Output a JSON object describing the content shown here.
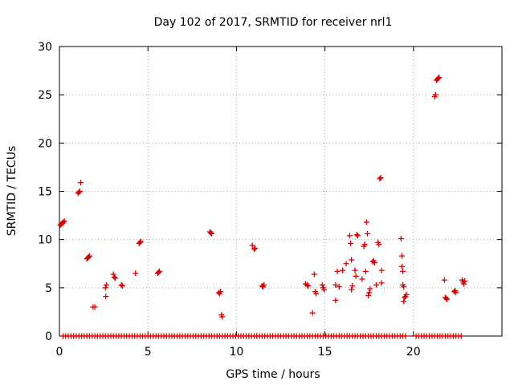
{
  "chart_data": {
    "type": "scatter",
    "title": "Day 102 of 2017, SRMTID for receiver nrl1",
    "xlabel": "GPS time / hours",
    "ylabel": "SRMTID / TECUs",
    "xlim": [
      0,
      25
    ],
    "ylim": [
      0,
      30
    ],
    "xticks": [
      0,
      5,
      10,
      15,
      20
    ],
    "yticks": [
      0,
      5,
      10,
      15,
      20,
      25,
      30
    ],
    "grid": true,
    "marker": "+",
    "color": "#e00000",
    "series": [
      {
        "name": "SRMTID",
        "points": [
          [
            0.05,
            11.5
          ],
          [
            0.1,
            11.6
          ],
          [
            0.15,
            11.7
          ],
          [
            0.22,
            11.8
          ],
          [
            0.28,
            11.9
          ],
          [
            1.05,
            14.8
          ],
          [
            1.1,
            14.9
          ],
          [
            1.15,
            15.0
          ],
          [
            1.2,
            15.9
          ],
          [
            1.55,
            8.0
          ],
          [
            1.6,
            8.1
          ],
          [
            1.65,
            8.2
          ],
          [
            1.7,
            8.3
          ],
          [
            1.9,
            3.0
          ],
          [
            2.0,
            3.0
          ],
          [
            2.6,
            5.0
          ],
          [
            2.65,
            5.3
          ],
          [
            2.62,
            4.1
          ],
          [
            3.05,
            6.4
          ],
          [
            3.1,
            6.1
          ],
          [
            3.15,
            6.0
          ],
          [
            3.5,
            5.3
          ],
          [
            3.55,
            5.2
          ],
          [
            4.3,
            6.5
          ],
          [
            4.5,
            9.6
          ],
          [
            4.55,
            9.7
          ],
          [
            4.6,
            9.8
          ],
          [
            5.55,
            6.5
          ],
          [
            5.6,
            6.6
          ],
          [
            5.65,
            6.7
          ],
          [
            8.5,
            10.8
          ],
          [
            8.55,
            10.7
          ],
          [
            8.6,
            10.6
          ],
          [
            9.0,
            4.5
          ],
          [
            9.05,
            4.4
          ],
          [
            9.1,
            4.6
          ],
          [
            9.15,
            2.2
          ],
          [
            9.2,
            2.0
          ],
          [
            10.9,
            9.4
          ],
          [
            11.0,
            9.0
          ],
          [
            11.05,
            9.1
          ],
          [
            11.45,
            5.2
          ],
          [
            11.5,
            5.1
          ],
          [
            11.55,
            5.3
          ],
          [
            13.9,
            5.4
          ],
          [
            14.0,
            5.3
          ],
          [
            14.05,
            5.2
          ],
          [
            14.3,
            2.4
          ],
          [
            14.4,
            6.4
          ],
          [
            14.45,
            4.6
          ],
          [
            14.5,
            4.4
          ],
          [
            14.85,
            5.3
          ],
          [
            14.9,
            5.0
          ],
          [
            14.95,
            4.8
          ],
          [
            15.6,
            3.7
          ],
          [
            15.6,
            5.3
          ],
          [
            15.7,
            6.7
          ],
          [
            15.8,
            5.1
          ],
          [
            16.0,
            6.8
          ],
          [
            16.2,
            7.5
          ],
          [
            16.4,
            10.4
          ],
          [
            16.45,
            9.6
          ],
          [
            16.5,
            7.9
          ],
          [
            16.5,
            4.8
          ],
          [
            16.55,
            5.2
          ],
          [
            16.7,
            6.8
          ],
          [
            16.75,
            6.2
          ],
          [
            16.8,
            10.5
          ],
          [
            16.85,
            10.4
          ],
          [
            17.1,
            5.9
          ],
          [
            17.2,
            9.3
          ],
          [
            17.25,
            9.5
          ],
          [
            17.3,
            6.7
          ],
          [
            17.35,
            11.8
          ],
          [
            17.4,
            10.6
          ],
          [
            17.45,
            4.2
          ],
          [
            17.5,
            4.5
          ],
          [
            17.55,
            4.9
          ],
          [
            17.7,
            7.7
          ],
          [
            17.75,
            7.8
          ],
          [
            17.8,
            7.6
          ],
          [
            17.9,
            5.3
          ],
          [
            18.0,
            9.7
          ],
          [
            18.05,
            9.5
          ],
          [
            18.1,
            16.3
          ],
          [
            18.15,
            16.4
          ],
          [
            18.2,
            6.8
          ],
          [
            18.2,
            5.5
          ],
          [
            19.3,
            10.1
          ],
          [
            19.35,
            8.3
          ],
          [
            19.35,
            7.2
          ],
          [
            19.4,
            6.7
          ],
          [
            19.4,
            5.3
          ],
          [
            19.45,
            5.1
          ],
          [
            19.45,
            3.6
          ],
          [
            19.5,
            4.0
          ],
          [
            19.55,
            4.1
          ],
          [
            19.6,
            4.3
          ],
          [
            21.2,
            24.8
          ],
          [
            21.25,
            25.0
          ],
          [
            21.3,
            26.5
          ],
          [
            21.35,
            26.6
          ],
          [
            21.4,
            26.7
          ],
          [
            21.45,
            26.8
          ],
          [
            21.75,
            5.8
          ],
          [
            21.8,
            4.0
          ],
          [
            21.85,
            3.9
          ],
          [
            21.9,
            3.8
          ],
          [
            22.3,
            4.6
          ],
          [
            22.35,
            4.7
          ],
          [
            22.4,
            4.5
          ],
          [
            22.75,
            5.8
          ],
          [
            22.8,
            5.6
          ],
          [
            22.85,
            5.4
          ],
          [
            22.9,
            5.7
          ]
        ]
      },
      {
        "name": "SRMTID (zero)",
        "x_range": [
          0.2,
          22.7
        ],
        "gaps": [
          [
            19.6,
            20.0
          ]
        ],
        "step": 0.15,
        "value": 0
      }
    ]
  }
}
